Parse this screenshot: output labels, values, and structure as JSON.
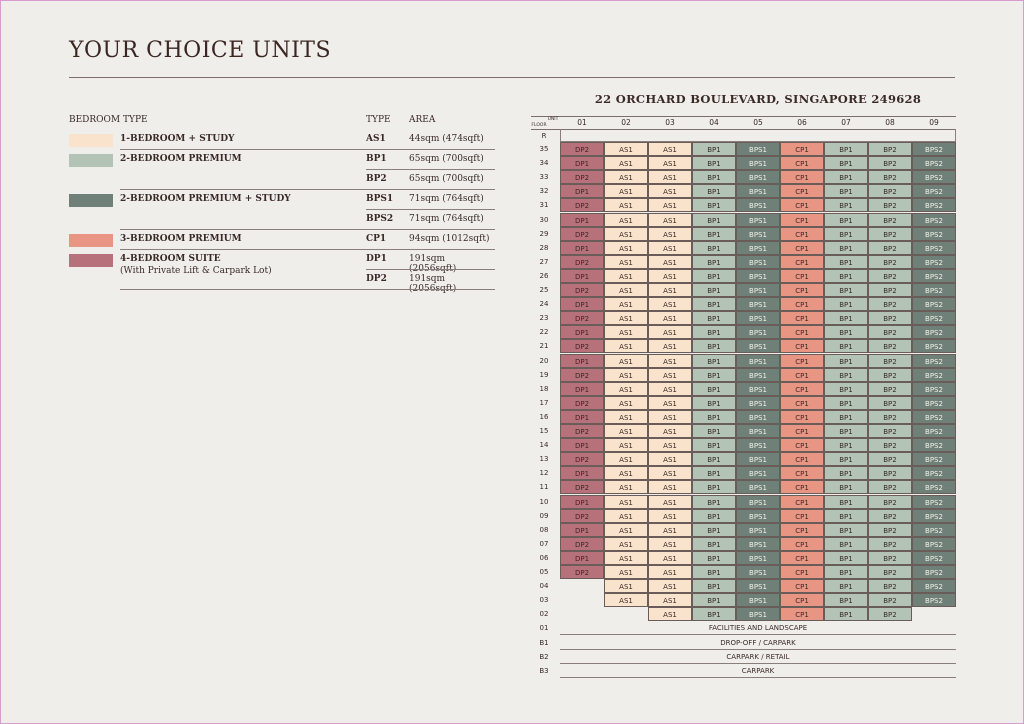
{
  "title": "YOUR CHOICE UNITS",
  "legend": {
    "headers": {
      "bedroom_type": "BEDROOM TYPE",
      "type": "TYPE",
      "area": "AREA"
    },
    "groups": [
      {
        "name": "1-BEDROOM + STUDY",
        "sub": "",
        "color": "#f9e3cc",
        "units": [
          {
            "type": "AS1",
            "area": "44sqm (474sqft)"
          }
        ]
      },
      {
        "name": "2-BEDROOM PREMIUM",
        "sub": "",
        "color": "#b3c4b7",
        "units": [
          {
            "type": "BP1",
            "area": "65sqm (700sqft)"
          },
          {
            "type": "BP2",
            "area": "65sqm (700sqft)"
          }
        ]
      },
      {
        "name": "2-BEDROOM PREMIUM + STUDY",
        "sub": "",
        "color": "#6e8077",
        "units": [
          {
            "type": "BPS1",
            "area": "71sqm (764sqft)"
          },
          {
            "type": "BPS2",
            "area": "71sqm (764sqft)"
          }
        ]
      },
      {
        "name": "3-BEDROOM PREMIUM",
        "sub": "",
        "color": "#e99583",
        "units": [
          {
            "type": "CP1",
            "area": "94sqm (1012sqft)"
          }
        ]
      },
      {
        "name": "4-BEDROOM SUITE",
        "sub": "(With Private Lift & Carpark Lot)",
        "color": "#b6717a",
        "units": [
          {
            "type": "DP1",
            "area": "191sqm (2056sqft)"
          },
          {
            "type": "DP2",
            "area": "191sqm (2056sqft)"
          }
        ]
      }
    ]
  },
  "stack": {
    "address": "22 ORCHARD BOULEVARD, SINGAPORE 249628",
    "corner_unit": "UNIT",
    "corner_floor": "FLOOR",
    "units": [
      "01",
      "02",
      "03",
      "04",
      "05",
      "06",
      "07",
      "08",
      "09"
    ],
    "roof_label": "R",
    "floors": [
      "35",
      "34",
      "33",
      "32",
      "31",
      "30",
      "29",
      "28",
      "27",
      "26",
      "25",
      "24",
      "23",
      "22",
      "21",
      "20",
      "19",
      "18",
      "17",
      "16",
      "15",
      "14",
      "13",
      "12",
      "11",
      "10",
      "09",
      "08",
      "07",
      "06",
      "05"
    ],
    "lower_floors": [
      {
        "floor": "04",
        "cells": [
          "",
          "AS1",
          "AS1",
          "BP1",
          "BPS1",
          "CP1",
          "BP1",
          "BP2",
          "BPS2"
        ]
      },
      {
        "floor": "03",
        "cells": [
          "",
          "AS1",
          "AS1",
          "BP1",
          "BPS1",
          "CP1",
          "BP1",
          "BP2",
          "BPS2"
        ]
      },
      {
        "floor": "02",
        "cells": [
          "",
          "",
          "AS1",
          "BP1",
          "BPS1",
          "CP1",
          "BP1",
          "BP2",
          ""
        ]
      }
    ],
    "bands": [
      {
        "floor": "01",
        "label": "FACILITIES AND LANDSCAPE"
      },
      {
        "floor": "B1",
        "label": "DROP-OFF / CARPARK"
      },
      {
        "floor": "B2",
        "label": "CARPARK / RETAIL"
      },
      {
        "floor": "B3",
        "label": "CARPARK"
      }
    ],
    "odd_col1": "DP2",
    "even_col1": "DP1",
    "upper_cols": [
      "AS1",
      "AS1",
      "BP1",
      "BPS1",
      "CP1",
      "BP1",
      "BP2",
      "BPS2"
    ]
  },
  "type_colors": {
    "AS1": "#f9e3cc",
    "BP1": "#b3c4b7",
    "BP2": "#b3c4b7",
    "BPS1": "#6e8077",
    "BPS2": "#6e8077",
    "CP1": "#e99583",
    "DP1": "#b6717a",
    "DP2": "#b6717a"
  }
}
